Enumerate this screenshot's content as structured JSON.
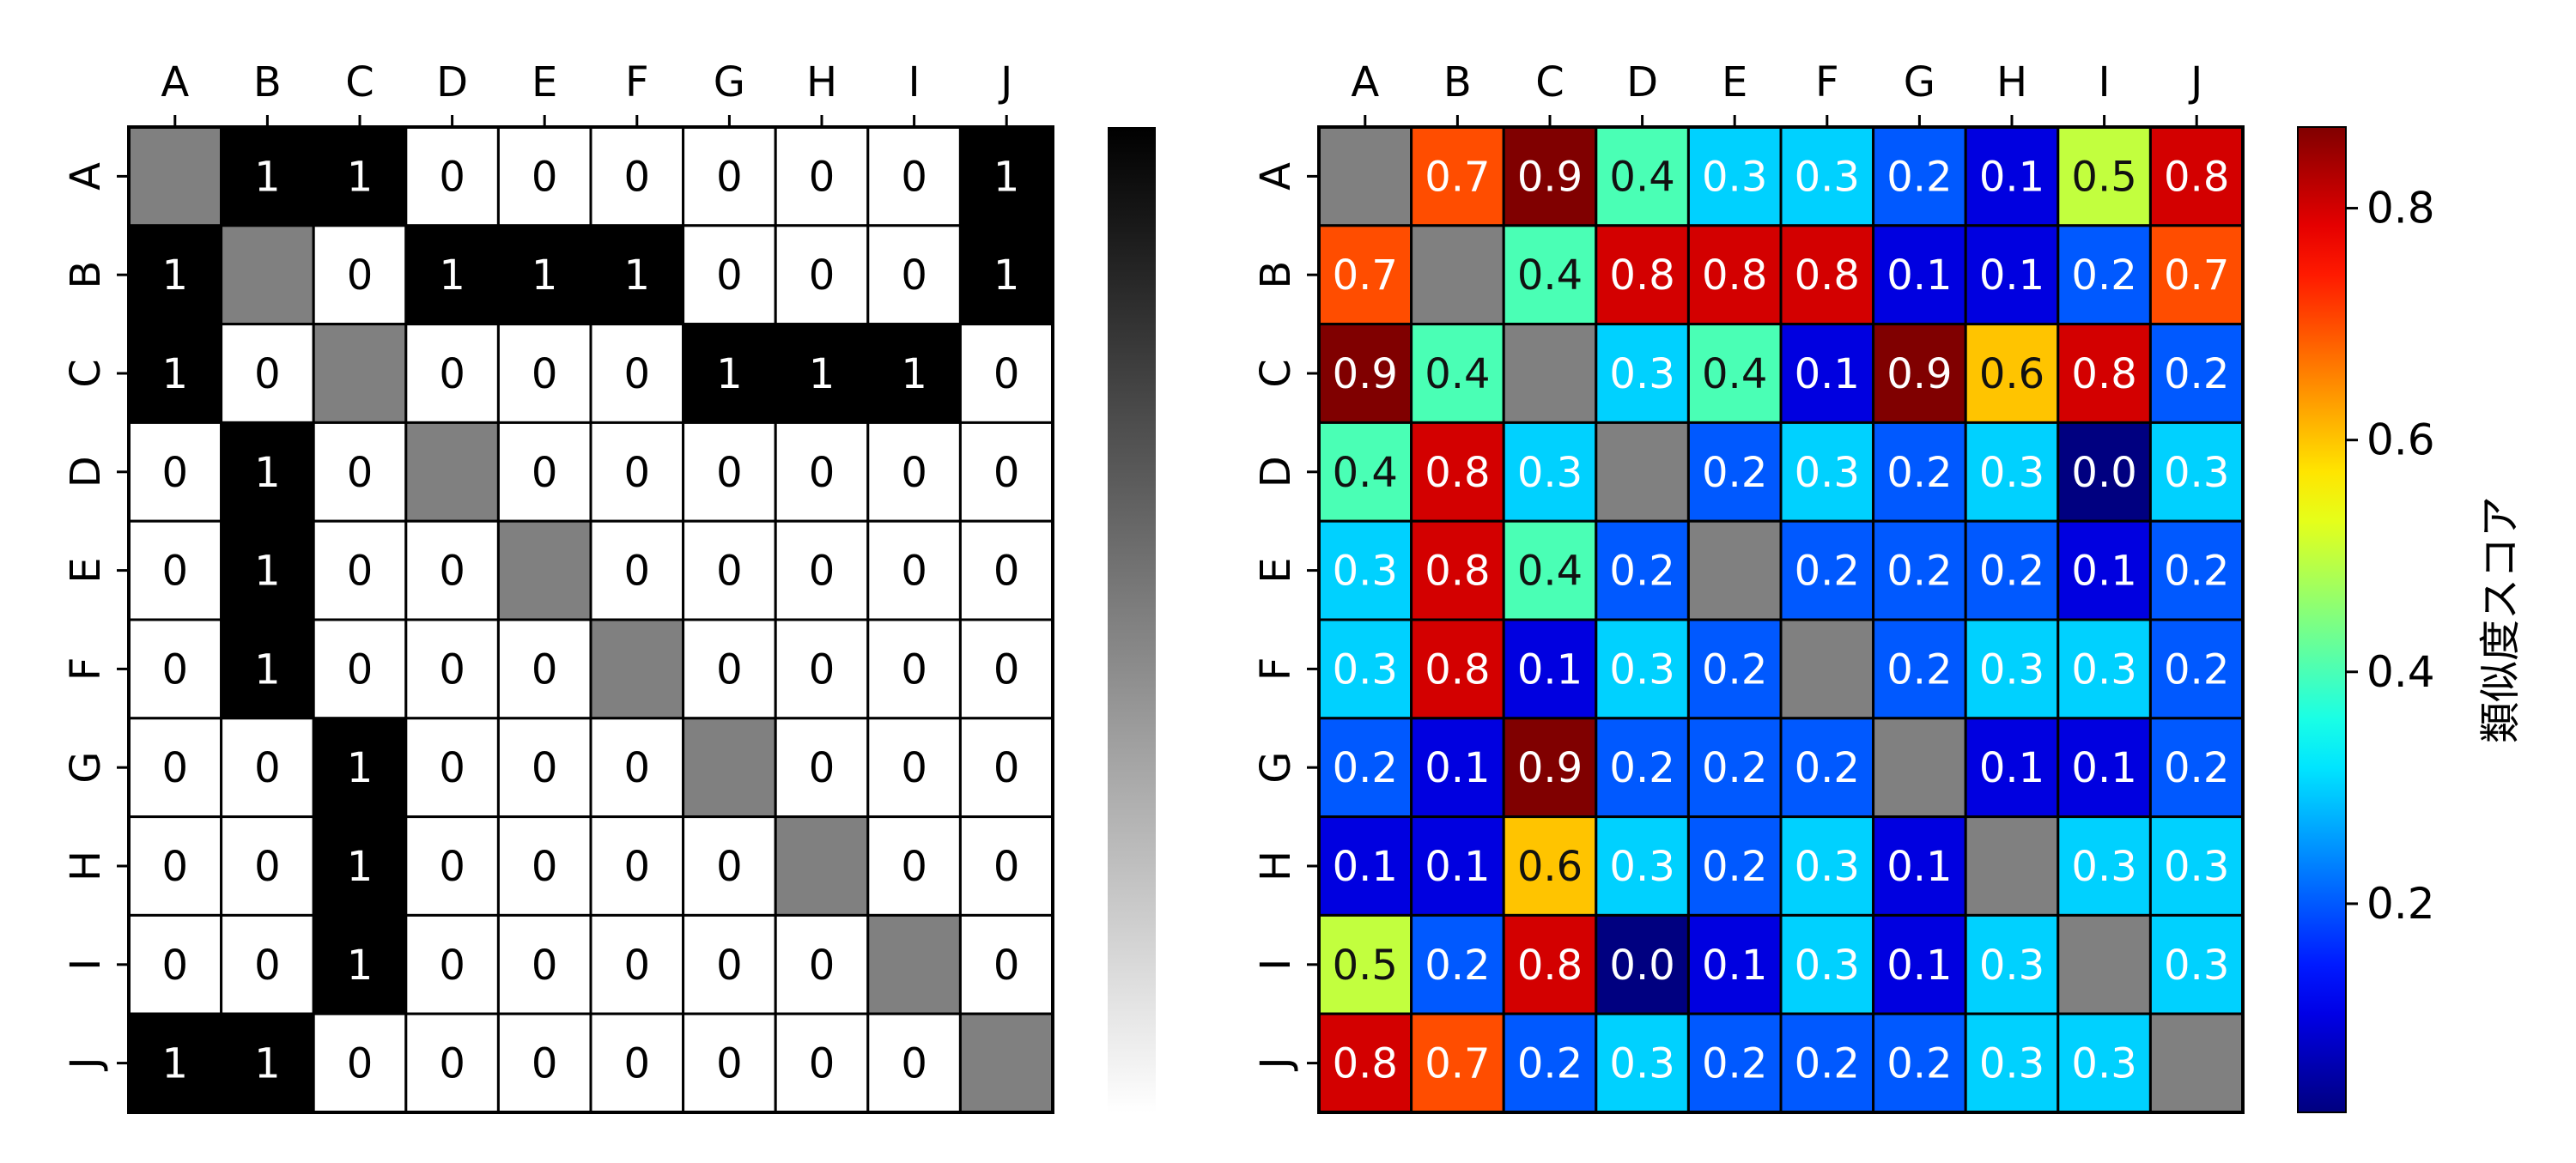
{
  "chart_data": [
    {
      "type": "heatmap",
      "title": "",
      "categories": [
        "A",
        "B",
        "C",
        "D",
        "E",
        "F",
        "G",
        "H",
        "I",
        "J"
      ],
      "values": [
        [
          null,
          1,
          1,
          0,
          0,
          0,
          0,
          0,
          0,
          1
        ],
        [
          1,
          null,
          0,
          1,
          1,
          1,
          0,
          0,
          0,
          1
        ],
        [
          1,
          0,
          null,
          0,
          0,
          0,
          1,
          1,
          1,
          0
        ],
        [
          0,
          1,
          0,
          null,
          0,
          0,
          0,
          0,
          0,
          0
        ],
        [
          0,
          1,
          0,
          0,
          null,
          0,
          0,
          0,
          0,
          0
        ],
        [
          0,
          1,
          0,
          0,
          0,
          null,
          0,
          0,
          0,
          0
        ],
        [
          0,
          0,
          1,
          0,
          0,
          0,
          null,
          0,
          0,
          0
        ],
        [
          0,
          0,
          1,
          0,
          0,
          0,
          0,
          null,
          0,
          0
        ],
        [
          0,
          0,
          1,
          0,
          0,
          0,
          0,
          0,
          null,
          0
        ],
        [
          1,
          1,
          0,
          0,
          0,
          0,
          0,
          0,
          0,
          null
        ]
      ],
      "diagonal_color": "#808080",
      "colormap": "binary",
      "vmin": 0,
      "vmax": 1,
      "colorbar": {
        "label": "",
        "ticks": []
      },
      "grid": true
    },
    {
      "type": "heatmap",
      "title": "",
      "categories": [
        "A",
        "B",
        "C",
        "D",
        "E",
        "F",
        "G",
        "H",
        "I",
        "J"
      ],
      "values": [
        [
          null,
          0.7,
          0.9,
          0.4,
          0.3,
          0.3,
          0.2,
          0.1,
          0.5,
          0.8
        ],
        [
          0.7,
          null,
          0.4,
          0.8,
          0.8,
          0.8,
          0.1,
          0.1,
          0.2,
          0.7
        ],
        [
          0.9,
          0.4,
          null,
          0.3,
          0.4,
          0.1,
          0.9,
          0.6,
          0.8,
          0.2
        ],
        [
          0.4,
          0.8,
          0.3,
          null,
          0.2,
          0.3,
          0.2,
          0.3,
          0.0,
          0.3
        ],
        [
          0.3,
          0.8,
          0.4,
          0.2,
          null,
          0.2,
          0.2,
          0.2,
          0.1,
          0.2
        ],
        [
          0.3,
          0.8,
          0.1,
          0.3,
          0.2,
          null,
          0.2,
          0.3,
          0.3,
          0.2
        ],
        [
          0.2,
          0.1,
          0.9,
          0.2,
          0.2,
          0.2,
          null,
          0.1,
          0.1,
          0.2
        ],
        [
          0.1,
          0.1,
          0.6,
          0.3,
          0.2,
          0.3,
          0.1,
          null,
          0.3,
          0.3
        ],
        [
          0.5,
          0.2,
          0.8,
          0.0,
          0.1,
          0.3,
          0.1,
          0.3,
          null,
          0.3
        ],
        [
          0.8,
          0.7,
          0.2,
          0.3,
          0.2,
          0.2,
          0.2,
          0.3,
          0.3,
          null
        ]
      ],
      "diagonal_color": "#808080",
      "colormap": "jet",
      "vmin": 0.02,
      "vmax": 0.87,
      "colorbar": {
        "label": "類似度スコア",
        "ticks": [
          0.2,
          0.4,
          0.6,
          0.8
        ]
      },
      "grid": true
    }
  ]
}
